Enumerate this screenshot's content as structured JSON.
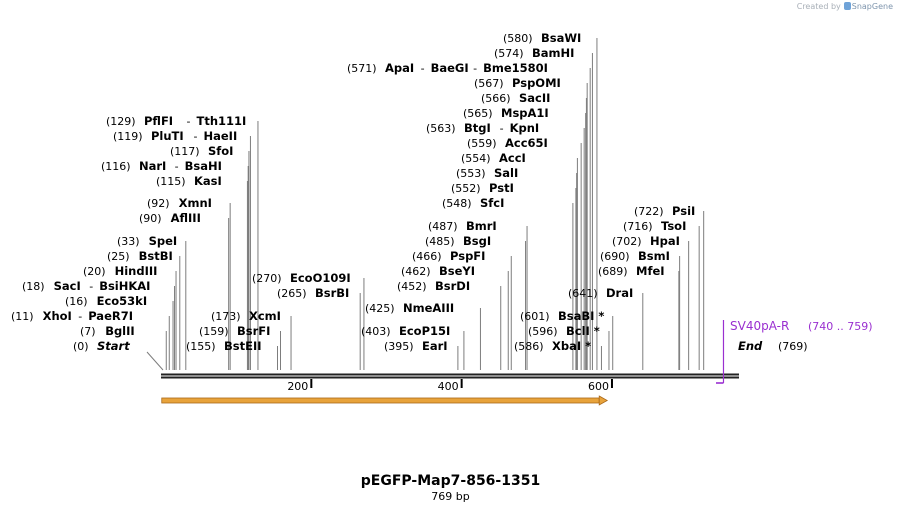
{
  "watermark": {
    "prefix": "Created by",
    "brand": "SnapGene"
  },
  "map": {
    "title": "pEGFP-Map7-856-1351",
    "length_label": "769 bp",
    "length": 769,
    "ruler_ticks": [
      "200",
      "400",
      "600"
    ],
    "start_label": {
      "pos": "(0)",
      "name": "Start"
    },
    "end_label": {
      "pos": "(769)",
      "name": "End"
    },
    "feature": {
      "name": "SV40pA-R",
      "range": "(740 .. 759)",
      "start": 740,
      "end": 759,
      "color": "#9a2fd0"
    },
    "orf": {
      "start": 1,
      "end": 591,
      "color": "#e8a33b"
    },
    "sites": [
      {
        "pos": "(7)",
        "names": [
          "BglII"
        ],
        "bp": 7
      },
      {
        "pos": "(11)",
        "names": [
          "XhoI",
          "PaeR7I"
        ],
        "bp": 11
      },
      {
        "pos": "(16)",
        "names": [
          "Eco53kI"
        ],
        "bp": 16
      },
      {
        "pos": "(18)",
        "names": [
          "SacI",
          "BsiHKAI"
        ],
        "bp": 18
      },
      {
        "pos": "(20)",
        "names": [
          "HindIII"
        ],
        "bp": 20
      },
      {
        "pos": "(25)",
        "names": [
          "BstBI"
        ],
        "bp": 25
      },
      {
        "pos": "(33)",
        "names": [
          "SpeI"
        ],
        "bp": 33
      },
      {
        "pos": "(90)",
        "names": [
          "AflIII"
        ],
        "bp": 90
      },
      {
        "pos": "(92)",
        "names": [
          "XmnI"
        ],
        "bp": 92
      },
      {
        "pos": "(115)",
        "names": [
          "KasI"
        ],
        "bp": 115
      },
      {
        "pos": "(116)",
        "names": [
          "NarI",
          "BsaHI"
        ],
        "bp": 116
      },
      {
        "pos": "(117)",
        "names": [
          "SfoI"
        ],
        "bp": 117
      },
      {
        "pos": "(119)",
        "names": [
          "PluTI",
          "HaeII"
        ],
        "bp": 119
      },
      {
        "pos": "(129)",
        "names": [
          "PflFI",
          "Tth111I"
        ],
        "bp": 129
      },
      {
        "pos": "(155)",
        "names": [
          "BstEII"
        ],
        "bp": 155
      },
      {
        "pos": "(159)",
        "names": [
          "BsrFI"
        ],
        "bp": 159
      },
      {
        "pos": "(173)",
        "names": [
          "XcmI"
        ],
        "bp": 173
      },
      {
        "pos": "(265)",
        "names": [
          "BsrBI"
        ],
        "bp": 265
      },
      {
        "pos": "(270)",
        "names": [
          "EcoO109I"
        ],
        "bp": 270
      },
      {
        "pos": "(395)",
        "names": [
          "EarI"
        ],
        "bp": 395
      },
      {
        "pos": "(403)",
        "names": [
          "EcoP15I"
        ],
        "bp": 403
      },
      {
        "pos": "(425)",
        "names": [
          "NmeAIII"
        ],
        "bp": 425
      },
      {
        "pos": "(452)",
        "names": [
          "BsrDI"
        ],
        "bp": 452
      },
      {
        "pos": "(462)",
        "names": [
          "BseYI"
        ],
        "bp": 462
      },
      {
        "pos": "(466)",
        "names": [
          "PspFI"
        ],
        "bp": 466
      },
      {
        "pos": "(485)",
        "names": [
          "BsgI"
        ],
        "bp": 485
      },
      {
        "pos": "(487)",
        "names": [
          "BmrI"
        ],
        "bp": 487
      },
      {
        "pos": "(548)",
        "names": [
          "SfcI"
        ],
        "bp": 548
      },
      {
        "pos": "(552)",
        "names": [
          "PstI"
        ],
        "bp": 552
      },
      {
        "pos": "(553)",
        "names": [
          "SalI"
        ],
        "bp": 553
      },
      {
        "pos": "(554)",
        "names": [
          "AccI"
        ],
        "bp": 554
      },
      {
        "pos": "(559)",
        "names": [
          "Acc65I"
        ],
        "bp": 559
      },
      {
        "pos": "(563)",
        "names": [
          "BtgI",
          "KpnI"
        ],
        "bp": 563
      },
      {
        "pos": "(565)",
        "names": [
          "MspA1I"
        ],
        "bp": 565
      },
      {
        "pos": "(566)",
        "names": [
          "SacII"
        ],
        "bp": 566
      },
      {
        "pos": "(567)",
        "names": [
          "PspOMI"
        ],
        "bp": 567
      },
      {
        "pos": "(571)",
        "names": [
          "ApaI",
          "BaeGI",
          "Bme1580I"
        ],
        "bp": 571
      },
      {
        "pos": "(574)",
        "names": [
          "BamHI"
        ],
        "bp": 574
      },
      {
        "pos": "(580)",
        "names": [
          "BsaWI"
        ],
        "bp": 580
      },
      {
        "pos": "(586)",
        "names": [
          "XbaI *"
        ],
        "bp": 586
      },
      {
        "pos": "(596)",
        "names": [
          "BclI *"
        ],
        "bp": 596
      },
      {
        "pos": "(601)",
        "names": [
          "BsaBI *"
        ],
        "bp": 601
      },
      {
        "pos": "(641)",
        "names": [
          "DraI"
        ],
        "bp": 641
      },
      {
        "pos": "(689)",
        "names": [
          "MfeI"
        ],
        "bp": 689
      },
      {
        "pos": "(690)",
        "names": [
          "BsmI"
        ],
        "bp": 690
      },
      {
        "pos": "(702)",
        "names": [
          "HpaI"
        ],
        "bp": 702
      },
      {
        "pos": "(716)",
        "names": [
          "TsoI"
        ],
        "bp": 716
      },
      {
        "pos": "(722)",
        "names": [
          "PsiI"
        ],
        "bp": 722
      }
    ]
  }
}
